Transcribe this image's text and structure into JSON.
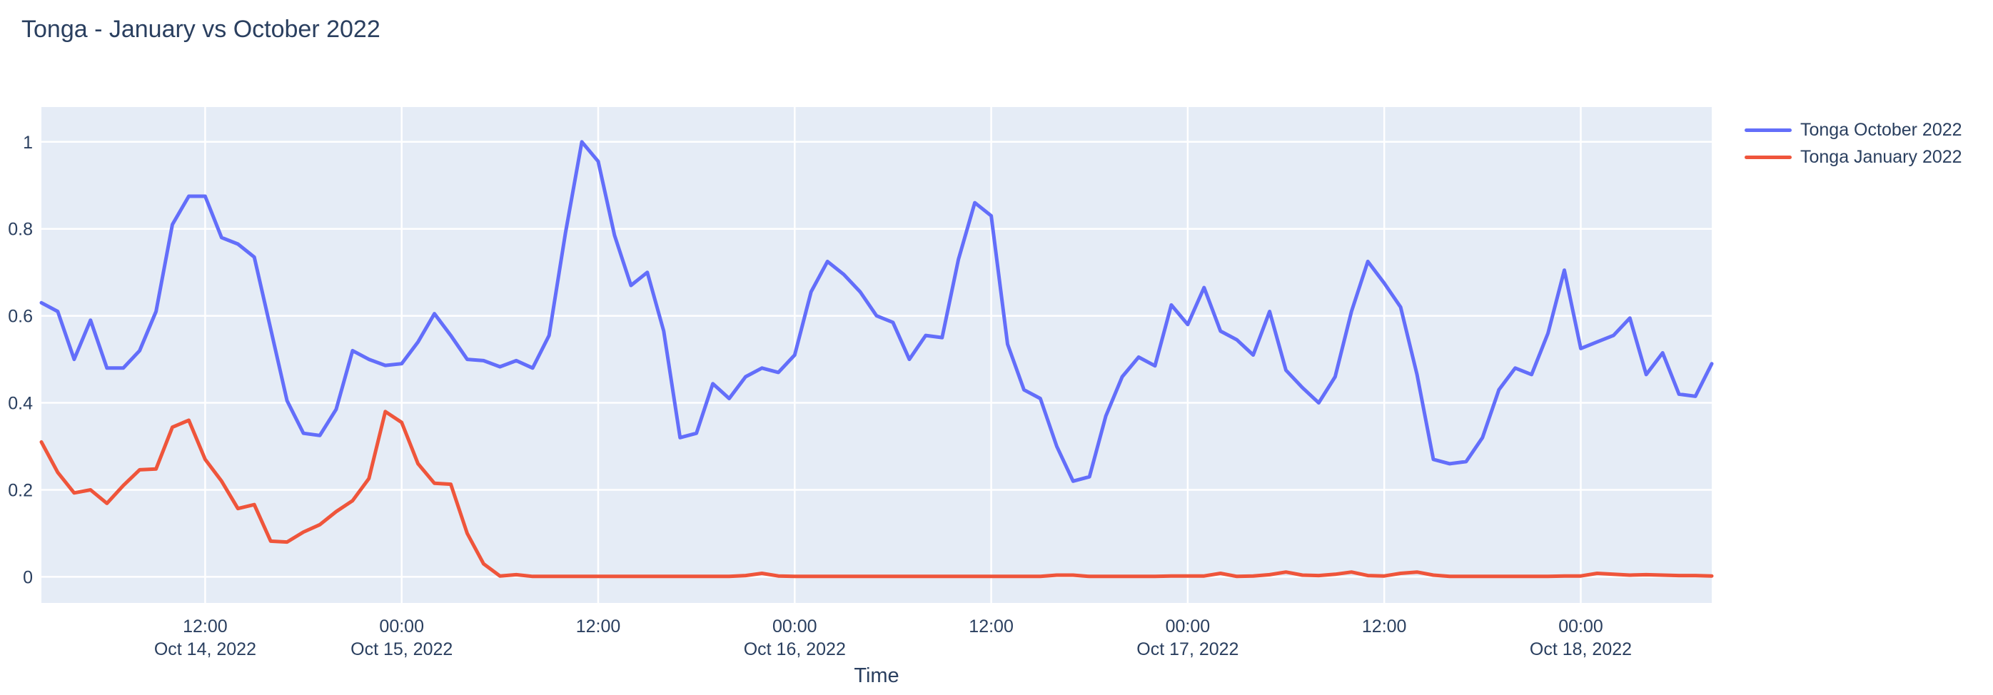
{
  "page": {
    "background": "#ffffff"
  },
  "chart_data": {
    "type": "line",
    "title": "Tonga - January vs October 2022",
    "xlabel": "Time",
    "ylabel": "",
    "x_start": "2022-10-14 02:00",
    "x_end": "2022-10-18 08:00",
    "x_interval_hours": 1,
    "ylim": [
      -0.06,
      1.08
    ],
    "grid": true,
    "plot_bg": "#E5ECF6",
    "grid_color": "#ffffff",
    "text_color": "#2a3f5f",
    "legend_position": "top-right-outside",
    "y_ticks": {
      "values": [
        0,
        0.2,
        0.4,
        0.6,
        0.8,
        1
      ],
      "labels": [
        "0",
        "0.2",
        "0.4",
        "0.6",
        "0.8",
        "1"
      ]
    },
    "x_ticks": [
      {
        "hour_offset": 10,
        "line1": "12:00",
        "line2": "Oct 14, 2022"
      },
      {
        "hour_offset": 22,
        "line1": "00:00",
        "line2": "Oct 15, 2022"
      },
      {
        "hour_offset": 34,
        "line1": "12:00",
        "line2": ""
      },
      {
        "hour_offset": 46,
        "line1": "00:00",
        "line2": "Oct 16, 2022"
      },
      {
        "hour_offset": 58,
        "line1": "12:00",
        "line2": ""
      },
      {
        "hour_offset": 70,
        "line1": "00:00",
        "line2": "Oct 17, 2022"
      },
      {
        "hour_offset": 82,
        "line1": "12:00",
        "line2": ""
      },
      {
        "hour_offset": 94,
        "line1": "00:00",
        "line2": "Oct 18, 2022"
      }
    ],
    "series": [
      {
        "name": "Tonga October 2022",
        "color": "#636EFA",
        "values": [
          0.63,
          0.61,
          0.5,
          0.59,
          0.48,
          0.48,
          0.52,
          0.61,
          0.81,
          0.875,
          0.875,
          0.78,
          0.765,
          0.735,
          0.57,
          0.405,
          0.33,
          0.325,
          0.385,
          0.52,
          0.5,
          0.486,
          0.49,
          0.54,
          0.605,
          0.555,
          0.5,
          0.497,
          0.483,
          0.497,
          0.48,
          0.555,
          0.79,
          1.0,
          0.955,
          0.785,
          0.67,
          0.7,
          0.565,
          0.32,
          0.33,
          0.444,
          0.41,
          0.46,
          0.48,
          0.47,
          0.51,
          0.655,
          0.725,
          0.695,
          0.655,
          0.6,
          0.585,
          0.5,
          0.555,
          0.55,
          0.73,
          0.86,
          0.83,
          0.535,
          0.43,
          0.41,
          0.3,
          0.22,
          0.23,
          0.37,
          0.46,
          0.505,
          0.485,
          0.625,
          0.58,
          0.665,
          0.565,
          0.545,
          0.51,
          0.61,
          0.475,
          0.435,
          0.4,
          0.46,
          0.61,
          0.725,
          0.675,
          0.62,
          0.465,
          0.27,
          0.26,
          0.265,
          0.32,
          0.43,
          0.48,
          0.465,
          0.56,
          0.705,
          0.525,
          0.54,
          0.555,
          0.595,
          0.465,
          0.515,
          0.42,
          0.415,
          0.49
        ]
      },
      {
        "name": "Tonga January 2022",
        "color": "#EF553B",
        "values": [
          0.31,
          0.24,
          0.193,
          0.2,
          0.169,
          0.21,
          0.246,
          0.248,
          0.344,
          0.36,
          0.27,
          0.22,
          0.157,
          0.166,
          0.082,
          0.08,
          0.103,
          0.12,
          0.15,
          0.175,
          0.226,
          0.38,
          0.355,
          0.26,
          0.215,
          0.213,
          0.1,
          0.03,
          0.002,
          0.005,
          0.001,
          0.001,
          0.001,
          0.001,
          0.001,
          0.001,
          0.001,
          0.001,
          0.001,
          0.001,
          0.001,
          0.001,
          0.001,
          0.003,
          0.008,
          0.002,
          0.001,
          0.001,
          0.001,
          0.001,
          0.001,
          0.001,
          0.001,
          0.001,
          0.001,
          0.001,
          0.001,
          0.001,
          0.001,
          0.001,
          0.001,
          0.001,
          0.004,
          0.004,
          0.001,
          0.001,
          0.001,
          0.001,
          0.001,
          0.002,
          0.002,
          0.002,
          0.008,
          0.001,
          0.002,
          0.005,
          0.011,
          0.004,
          0.003,
          0.006,
          0.011,
          0.003,
          0.002,
          0.008,
          0.011,
          0.004,
          0.001,
          0.001,
          0.001,
          0.001,
          0.001,
          0.001,
          0.001,
          0.002,
          0.002,
          0.008,
          0.006,
          0.004,
          0.005,
          0.004,
          0.003,
          0.003,
          0.002
        ]
      }
    ]
  }
}
